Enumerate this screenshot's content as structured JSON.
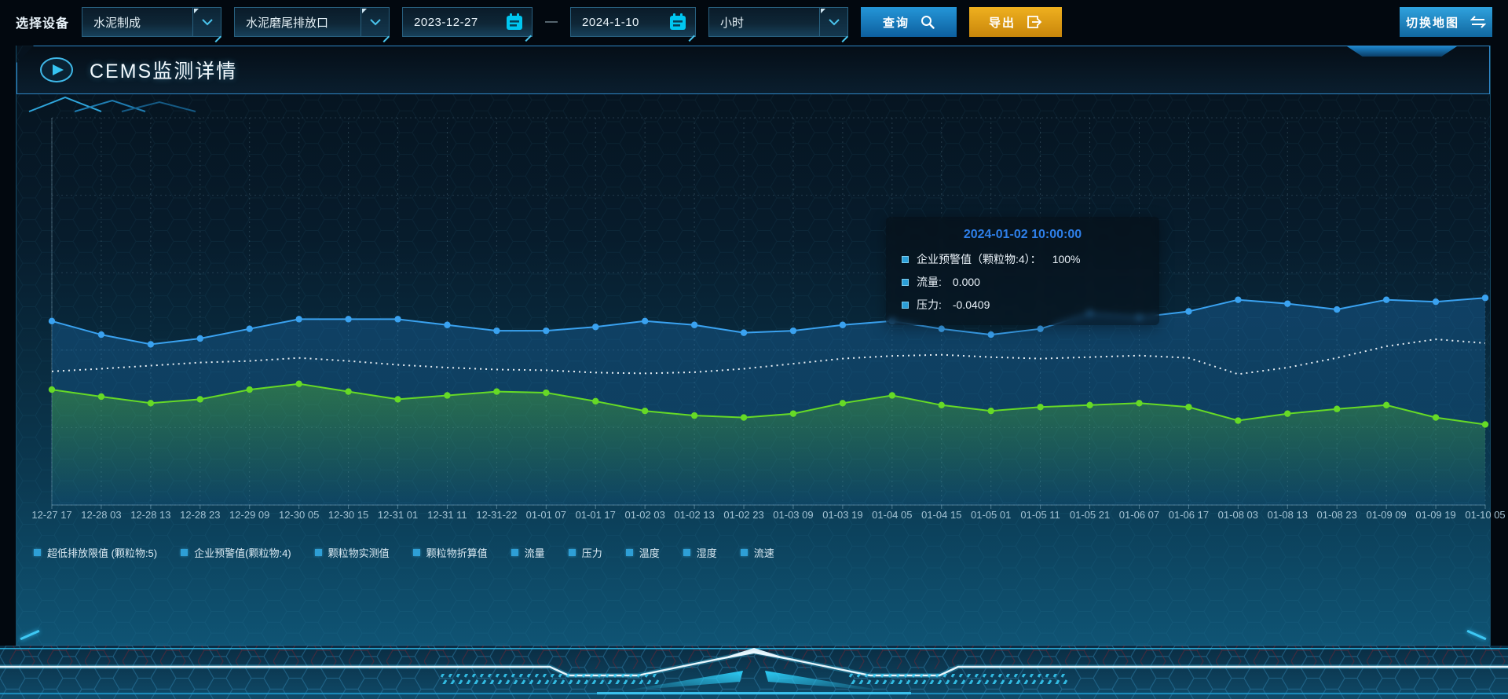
{
  "toolbar": {
    "device_label": "选择设备",
    "device_select": {
      "value": "水泥制成"
    },
    "port_select": {
      "value": "水泥磨尾排放口"
    },
    "date_start": "2023-12-27",
    "date_separator": "—",
    "date_end": "2024-1-10",
    "interval_select": {
      "value": "小时"
    },
    "query_button": "查询",
    "export_button": "导出",
    "switch_map_button": "切换地图"
  },
  "panel": {
    "title": "CEMS监测详情"
  },
  "tooltip": {
    "title": "2024-01-02 10:00:00",
    "items": [
      {
        "label": "企业预警值（颗粒物:4）：",
        "value": "100%"
      },
      {
        "label": "流量:",
        "value": "0.000"
      },
      {
        "label": "压力:",
        "value": "-0.0409"
      }
    ]
  },
  "chart_data": {
    "type": "line",
    "title": "CEMS监测详情",
    "x_categories": [
      "12-27 17",
      "12-28 03",
      "12-28 13",
      "12-28 23",
      "12-29 09",
      "12-30 05",
      "12-30 15",
      "12-31 01",
      "12-31 11",
      "12-31-22",
      "01-01 07",
      "01-01 17",
      "01-02 03",
      "01-02 13",
      "01-02 23",
      "01-03 09",
      "01-03 19",
      "01-04 05",
      "01-04 15",
      "01-05 01",
      "01-05 11",
      "01-05 21",
      "01-06 07",
      "01-06 17",
      "01-08 03",
      "01-08 13",
      "01-08 23",
      "01-09 09",
      "01-09 19",
      "01-10 05"
    ],
    "y_axis": {
      "labels_visible": false,
      "range_norm": [
        0,
        100
      ]
    },
    "grid": true,
    "legend_position": "bottom-left",
    "legend": [
      "超低排放限值 (颗粒物:5)",
      "企业预警值(颗粒物:4)",
      "颗粒物实测值",
      "颗粒物折算值",
      "流量",
      "压力",
      "温度",
      "湿度",
      "流速"
    ],
    "series": [
      {
        "name": "流量",
        "color": "#3aa2f0",
        "line_style": "solid",
        "markers": true,
        "area": "flat",
        "values_norm": [
          47.5,
          44,
          41.5,
          43,
          45.5,
          48,
          48,
          48,
          46.5,
          45,
          45,
          46,
          47.5,
          46.5,
          44.5,
          45,
          46.5,
          47.5,
          45.5,
          44,
          45.5,
          49.5,
          48.5,
          50,
          53,
          52,
          50.5,
          53,
          52.5,
          53.5
        ]
      },
      {
        "name": "企业预警值(颗粒物:4)",
        "color": "#e8eff5",
        "line_style": "dotted",
        "markers": false,
        "area": "none",
        "values_norm": [
          34.5,
          35.2,
          36,
          36.8,
          37.2,
          38,
          37.2,
          36.2,
          35.5,
          35,
          34.8,
          34.2,
          34,
          34.3,
          35.2,
          36.5,
          37.8,
          38.5,
          38.8,
          38.2,
          37.8,
          38.2,
          38.6,
          38,
          33.8,
          35.5,
          38,
          41,
          42.8,
          41.8
        ]
      },
      {
        "name": "压力",
        "color": "#66da26",
        "line_style": "solid",
        "markers": true,
        "area": "gradient",
        "values_norm": [
          29.8,
          28,
          26.3,
          27.3,
          29.8,
          31.3,
          29.3,
          27.3,
          28.3,
          29.3,
          29,
          26.8,
          24.3,
          23.1,
          22.6,
          23.6,
          26.3,
          28.3,
          25.8,
          24.3,
          25.3,
          25.8,
          26.3,
          25.3,
          21.8,
          23.6,
          24.8,
          25.8,
          22.6,
          20.8
        ]
      }
    ]
  },
  "colors": {
    "accent_cyan": "#3ec8f4",
    "accent_blue": "#2e7fe8",
    "button_blue": "#1b85c8",
    "button_orange": "#dd9a12",
    "line_blue": "#3aa2f0",
    "line_green": "#66da26",
    "line_white": "#e8eff5",
    "legend_marker": "#2e9fd6",
    "panel_border": "#2f86c6"
  }
}
